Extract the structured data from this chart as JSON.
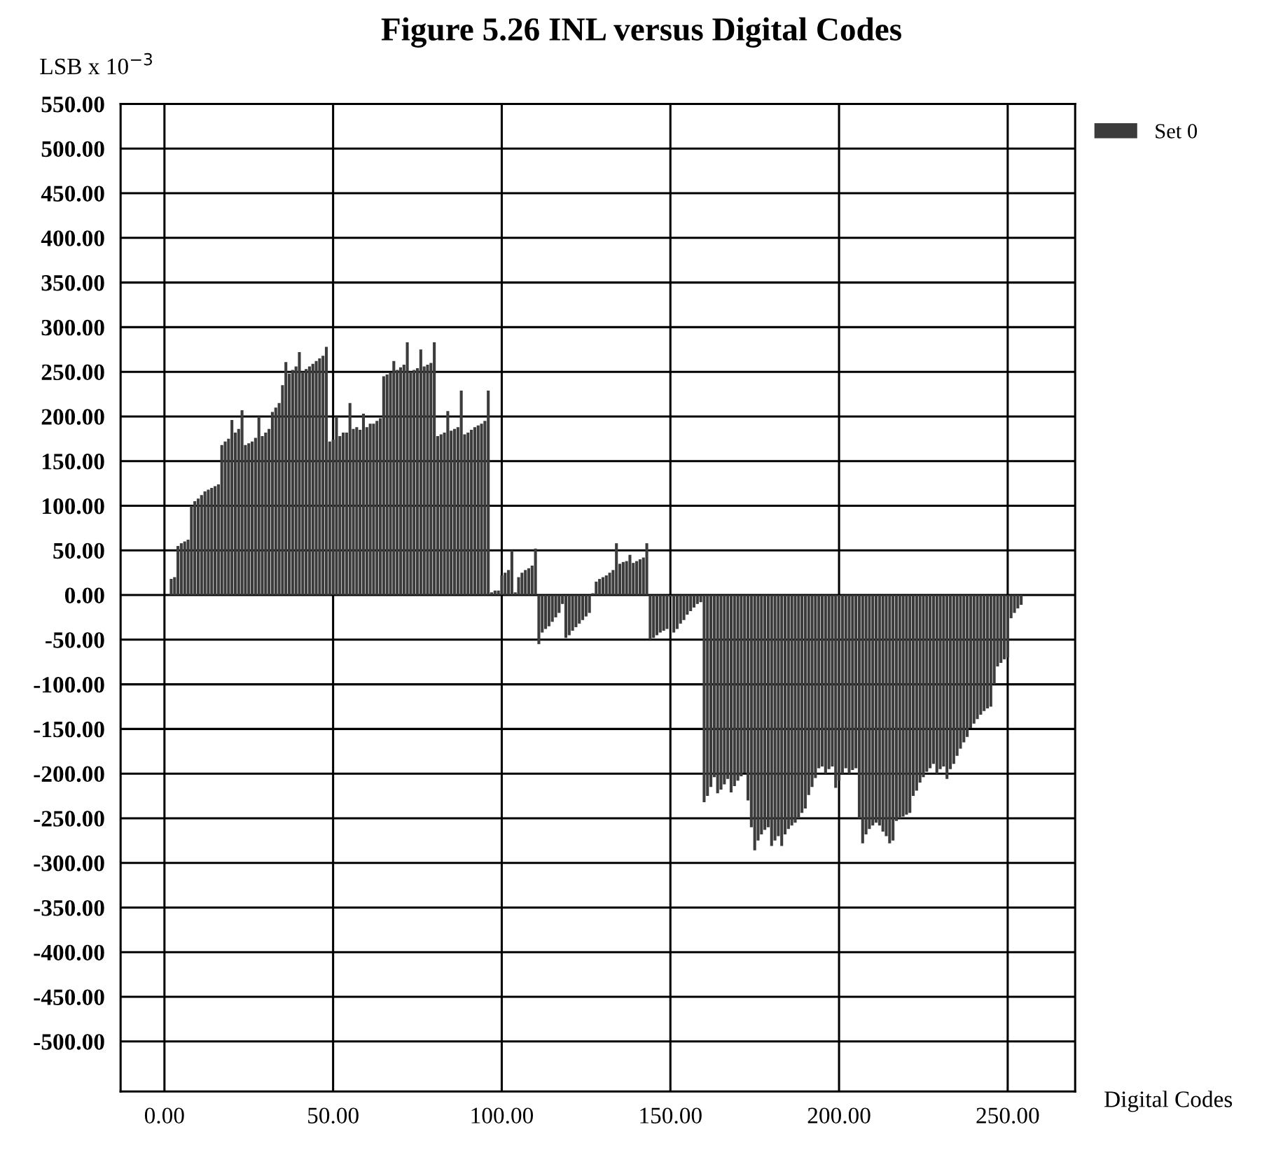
{
  "chart_data": {
    "type": "bar",
    "title": "Figure 5.26 INL versus Digital Codes",
    "xlabel": "Digital Codes",
    "ylabel": "LSB x 10$^{−3}$",
    "x": [
      2,
      3,
      4,
      5,
      6,
      7,
      8,
      9,
      10,
      11,
      12,
      13,
      14,
      15,
      16,
      17,
      18,
      19,
      20,
      21,
      22,
      23,
      24,
      25,
      26,
      27,
      28,
      29,
      30,
      31,
      32,
      33,
      34,
      35,
      36,
      37,
      38,
      39,
      40,
      41,
      42,
      43,
      44,
      45,
      46,
      47,
      48,
      49,
      50,
      51,
      52,
      53,
      54,
      55,
      56,
      57,
      58,
      59,
      60,
      61,
      62,
      63,
      64,
      65,
      66,
      67,
      68,
      69,
      70,
      71,
      72,
      73,
      74,
      75,
      76,
      77,
      78,
      79,
      80,
      81,
      82,
      83,
      84,
      85,
      86,
      87,
      88,
      89,
      90,
      91,
      92,
      93,
      94,
      95,
      96,
      97,
      98,
      99,
      100,
      101,
      102,
      103,
      104,
      105,
      106,
      107,
      108,
      109,
      110,
      111,
      112,
      113,
      114,
      115,
      116,
      117,
      118,
      119,
      120,
      121,
      122,
      123,
      124,
      125,
      126,
      127,
      128,
      129,
      130,
      131,
      132,
      133,
      134,
      135,
      136,
      137,
      138,
      139,
      140,
      141,
      142,
      143,
      144,
      145,
      146,
      147,
      148,
      149,
      150,
      151,
      152,
      153,
      154,
      155,
      156,
      157,
      158,
      159,
      160,
      161,
      162,
      163,
      164,
      165,
      166,
      167,
      168,
      169,
      170,
      171,
      172,
      173,
      174,
      175,
      176,
      177,
      178,
      179,
      180,
      181,
      182,
      183,
      184,
      185,
      186,
      187,
      188,
      189,
      190,
      191,
      192,
      193,
      194,
      195,
      196,
      197,
      198,
      199,
      200,
      201,
      202,
      203,
      204,
      205,
      206,
      207,
      208,
      209,
      210,
      211,
      212,
      213,
      214,
      215,
      216,
      217,
      218,
      219,
      220,
      221,
      222,
      223,
      224,
      225,
      226,
      227,
      228,
      229,
      230,
      231,
      232,
      233,
      234,
      235,
      236,
      237,
      238,
      239,
      240,
      241,
      242,
      243,
      244,
      245,
      246,
      247,
      248,
      249,
      250,
      251,
      252,
      253,
      254
    ],
    "series": [
      {
        "name": "Set 0",
        "color": "#3c3c3c",
        "values": [
          18,
          20,
          55,
          58,
          60,
          62,
          100,
          105,
          108,
          112,
          116,
          118,
          120,
          122,
          124,
          168,
          172,
          175,
          196,
          182,
          186,
          207,
          168,
          170,
          172,
          176,
          200,
          178,
          182,
          186,
          205,
          210,
          215,
          235,
          261,
          248,
          252,
          256,
          272,
          250,
          253,
          256,
          259,
          262,
          265,
          268,
          278,
          172,
          174,
          200,
          178,
          182,
          182,
          215,
          186,
          188,
          185,
          203,
          188,
          192,
          192,
          195,
          198,
          245,
          247,
          249,
          262,
          252,
          255,
          258,
          283,
          250,
          252,
          254,
          275,
          256,
          258,
          260,
          283,
          178,
          180,
          182,
          206,
          184,
          186,
          188,
          229,
          180,
          182,
          185,
          188,
          190,
          192,
          195,
          229,
          3,
          5,
          5,
          22,
          25,
          28,
          50,
          3,
          20,
          25,
          28,
          30,
          33,
          52,
          -55,
          -42,
          -38,
          -35,
          -30,
          -25,
          -20,
          -10,
          -48,
          -45,
          -40,
          -36,
          -32,
          -28,
          -24,
          -20,
          2,
          15,
          18,
          20,
          22,
          25,
          28,
          58,
          35,
          37,
          38,
          45,
          36,
          38,
          40,
          42,
          58,
          -50,
          -48,
          -45,
          -42,
          -40,
          -38,
          -2,
          -42,
          -38,
          -32,
          -28,
          -22,
          -18,
          -14,
          -10,
          -8,
          -232,
          -225,
          -215,
          -204,
          -222,
          -218,
          -212,
          -206,
          -221,
          -214,
          -208,
          -203,
          -199,
          -230,
          -260,
          -286,
          -275,
          -268,
          -263,
          -260,
          -281,
          -275,
          -270,
          -281,
          -268,
          -262,
          -258,
          -255,
          -250,
          -244,
          -239,
          -224,
          -215,
          -205,
          -194,
          -192,
          -200,
          -195,
          -192,
          -216,
          -208,
          -200,
          -194,
          -200,
          -196,
          -194,
          -250,
          -278,
          -268,
          -262,
          -258,
          -255,
          -258,
          -265,
          -270,
          -278,
          -275,
          -253,
          -250,
          -248,
          -246,
          -244,
          -225,
          -219,
          -210,
          -204,
          -198,
          -194,
          -189,
          -200,
          -195,
          -192,
          -206,
          -195,
          -189,
          -180,
          -172,
          -165,
          -159,
          -149,
          -144,
          -139,
          -134,
          -130,
          -127,
          -125,
          -100,
          -80,
          -76,
          -72,
          -70,
          -26,
          -20,
          -15,
          -11
        ]
      }
    ],
    "xlim": [
      -13,
      270
    ],
    "ylim": [
      -556,
      550
    ],
    "xticks": [
      {
        "value": 0,
        "label": "0.00"
      },
      {
        "value": 50,
        "label": "50.00"
      },
      {
        "value": 100,
        "label": "100.00"
      },
      {
        "value": 150,
        "label": "150.00"
      },
      {
        "value": 200,
        "label": "200.00"
      },
      {
        "value": 250,
        "label": "250.00"
      }
    ],
    "yticks": [
      {
        "value": -500,
        "label": "-500.00"
      },
      {
        "value": -450,
        "label": "-450.00"
      },
      {
        "value": -400,
        "label": "-400.00"
      },
      {
        "value": -350,
        "label": "-350.00"
      },
      {
        "value": -300,
        "label": "-300.00"
      },
      {
        "value": -250,
        "label": "-250.00"
      },
      {
        "value": -200,
        "label": "-200.00"
      },
      {
        "value": -150,
        "label": "-150.00"
      },
      {
        "value": -100,
        "label": "-100.00"
      },
      {
        "value": -50,
        "label": "-50.00"
      },
      {
        "value": 0,
        "label": "0.00"
      },
      {
        "value": 50,
        "label": "50.00"
      },
      {
        "value": 100,
        "label": "100.00"
      },
      {
        "value": 150,
        "label": "150.00"
      },
      {
        "value": 200,
        "label": "200.00"
      },
      {
        "value": 250,
        "label": "250.00"
      },
      {
        "value": 300,
        "label": "300.00"
      },
      {
        "value": 350,
        "label": "350.00"
      },
      {
        "value": 400,
        "label": "400.00"
      },
      {
        "value": 450,
        "label": "450.00"
      },
      {
        "value": 500,
        "label": "500.00"
      },
      {
        "value": 550,
        "label": "550.00"
      }
    ],
    "grid": true,
    "legend": "top right"
  }
}
